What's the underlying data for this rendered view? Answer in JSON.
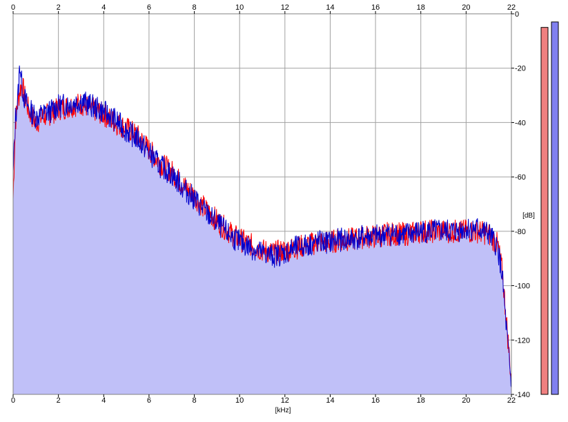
{
  "chart_data": {
    "type": "area",
    "xlabel": "[kHz]",
    "ylabel": "[dB]",
    "xlim": [
      0,
      22
    ],
    "ylim": [
      -140,
      0
    ],
    "x_ticks": [
      0,
      2,
      4,
      6,
      8,
      10,
      12,
      14,
      16,
      18,
      20,
      22
    ],
    "y_ticks": [
      0,
      -20,
      -40,
      -60,
      -80,
      -100,
      -120,
      -140
    ],
    "y_tick_labels": [
      "0",
      "-20",
      "-40",
      "-60",
      "-80",
      "-100",
      "-120",
      "-140"
    ],
    "grid": true,
    "x": [
      0.0,
      0.1,
      0.2,
      0.3,
      0.4,
      0.5,
      0.7,
      1.0,
      1.3,
      1.6,
      2.0,
      2.5,
      3.0,
      3.5,
      4.0,
      4.5,
      5.0,
      5.5,
      6.0,
      6.5,
      7.0,
      7.5,
      8.0,
      8.5,
      9.0,
      9.5,
      10.0,
      10.5,
      11.0,
      11.5,
      12.0,
      12.5,
      13.0,
      13.5,
      14.0,
      14.5,
      15.0,
      15.5,
      16.0,
      16.5,
      17.0,
      17.5,
      18.0,
      18.5,
      19.0,
      19.5,
      20.0,
      20.5,
      21.0,
      21.4,
      21.6,
      21.8,
      21.9,
      22.0
    ],
    "series": [
      {
        "color": "#ff0000",
        "values": [
          -68,
          -40,
          -33,
          -28,
          -26,
          -30,
          -36,
          -40,
          -38,
          -37,
          -35,
          -34,
          -33,
          -35,
          -37,
          -40,
          -42,
          -45,
          -50,
          -55,
          -58,
          -63,
          -67,
          -72,
          -76,
          -80,
          -83,
          -85,
          -87,
          -88,
          -87,
          -86,
          -85,
          -84,
          -84,
          -83,
          -83,
          -82,
          -82,
          -81,
          -81,
          -81,
          -80,
          -80,
          -80,
          -80,
          -80,
          -80,
          -81,
          -85,
          -95,
          -115,
          -125,
          -135
        ]
      },
      {
        "color": "#0000cc",
        "values": [
          -60,
          -38,
          -32,
          -18,
          -27,
          -31,
          -35,
          -38,
          -37,
          -36,
          -34,
          -33,
          -32,
          -34,
          -36,
          -39,
          -43,
          -46,
          -51,
          -56,
          -59,
          -64,
          -68,
          -73,
          -77,
          -81,
          -84,
          -86,
          -88,
          -89,
          -88,
          -86,
          -85,
          -84,
          -84,
          -83,
          -83,
          -82,
          -82,
          -81,
          -81,
          -81,
          -80,
          -80,
          -80,
          -80,
          -79,
          -79,
          -81,
          -86,
          -97,
          -118,
          -128,
          -138
        ]
      }
    ],
    "fill_color": "#c0c0f8",
    "level_meters": [
      {
        "color": "#f08080",
        "level_db": -5
      },
      {
        "color": "#8080f0",
        "level_db": -3
      }
    ]
  }
}
